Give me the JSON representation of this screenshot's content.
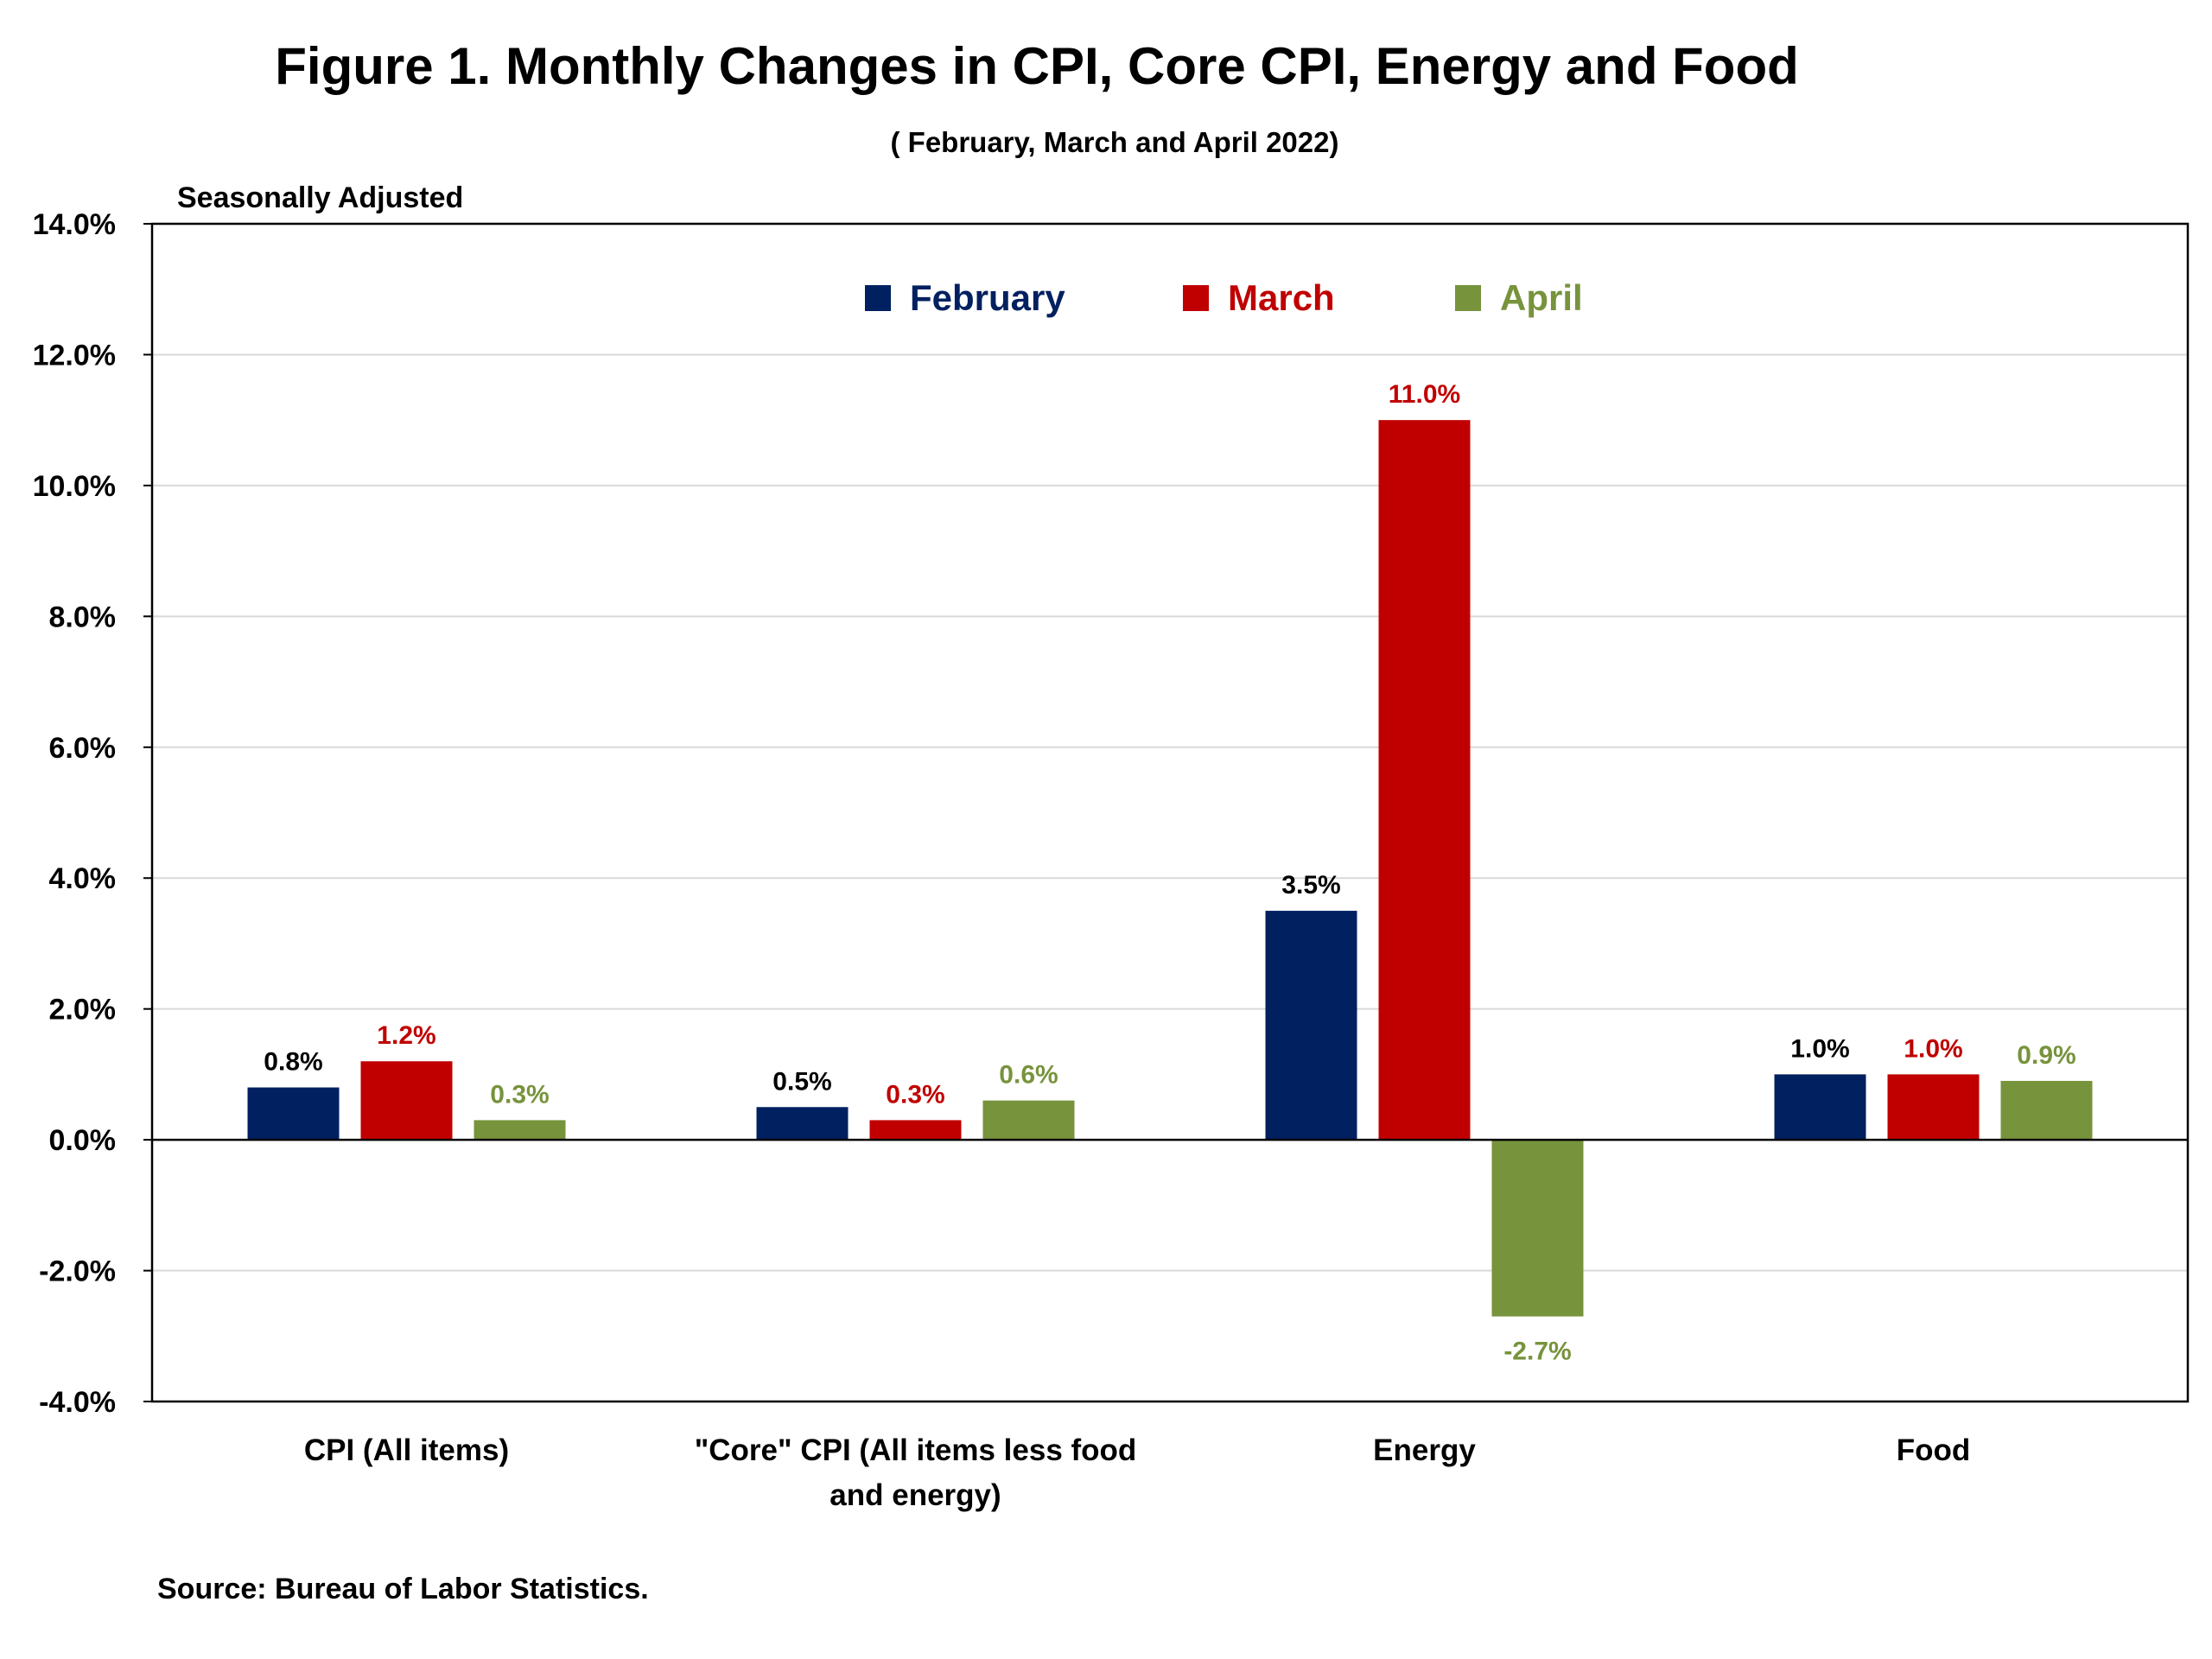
{
  "title": "Figure 1. Monthly Changes in CPI, Core CPI, Energy and Food",
  "subtitle": "( February, March and April 2022)",
  "note": "Seasonally Adjusted",
  "source": "Source: Bureau of Labor Statistics.",
  "chart_data": {
    "type": "bar",
    "categories": [
      [
        "CPI (All items)"
      ],
      [
        "\"Core\" CPI (All items less food",
        "and energy)"
      ],
      [
        "Energy"
      ],
      [
        "Food"
      ]
    ],
    "series": [
      {
        "name": "February",
        "color": "#002060",
        "label_color": "#000000",
        "values": [
          0.8,
          0.5,
          3.5,
          1.0
        ],
        "labels": [
          "0.8%",
          "0.5%",
          "3.5%",
          "1.0%"
        ]
      },
      {
        "name": "March",
        "color": "#C00000",
        "label_color": "#C00000",
        "values": [
          1.2,
          0.3,
          11.0,
          1.0
        ],
        "labels": [
          "1.2%",
          "0.3%",
          "11.0%",
          "1.0%"
        ]
      },
      {
        "name": "April",
        "color": "#77933C",
        "label_color": "#77933C",
        "values": [
          0.3,
          0.6,
          -2.7,
          0.9
        ],
        "labels": [
          "0.3%",
          "0.6%",
          "-2.7%",
          "0.9%"
        ]
      }
    ],
    "ylim": [
      -4,
      14
    ],
    "yticks": [
      {
        "value": 14,
        "label": "14.0%"
      },
      {
        "value": 12,
        "label": "12.0%"
      },
      {
        "value": 10,
        "label": "10.0%"
      },
      {
        "value": 8,
        "label": "8.0%"
      },
      {
        "value": 6,
        "label": "6.0%"
      },
      {
        "value": 4,
        "label": "4.0%"
      },
      {
        "value": 2,
        "label": "2.0%"
      },
      {
        "value": 0,
        "label": "0.0%"
      },
      {
        "value": -2,
        "label": "-2.0%"
      },
      {
        "value": -4,
        "label": "-4.0%"
      }
    ],
    "grid": true,
    "legend_position": "top-center"
  }
}
